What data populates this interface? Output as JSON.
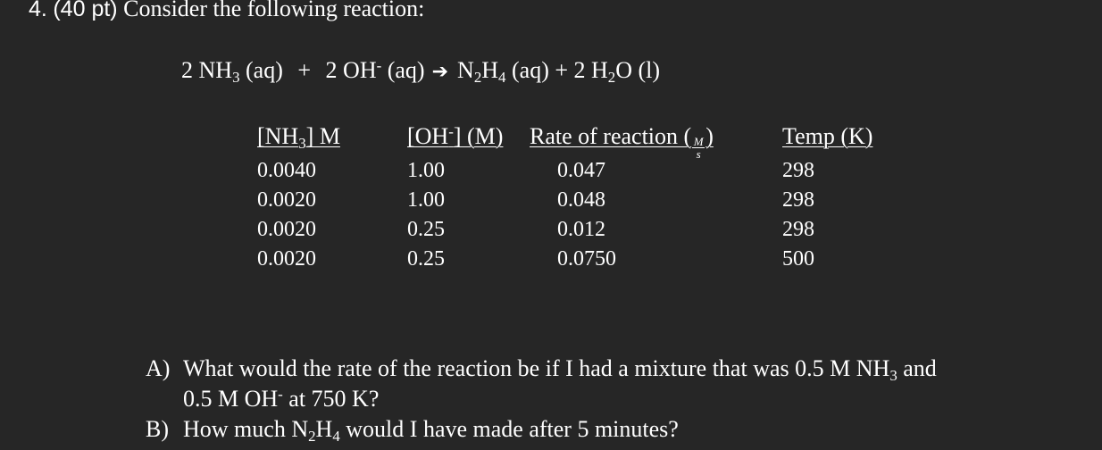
{
  "question": {
    "number": "4.",
    "points": "(40 pt)",
    "prompt": "Consider the following reaction:"
  },
  "equation": {
    "reactant1_coef": "2 NH",
    "reactant1_sub": "3",
    "reactant1_state": " (aq)",
    "plus": " + ",
    "reactant2": "2 OH",
    "reactant2_sup": "-",
    "reactant2_state": " (aq)",
    "arrow": "➔",
    "product1_a": "N",
    "product1_sub1": "2",
    "product1_b": "H",
    "product1_sub2": "4",
    "product1_state": " (aq) + 2 H",
    "product2_sub": "2",
    "product2_rest": "O (l)"
  },
  "table": {
    "headers": {
      "nh3_a": "[NH",
      "nh3_sub": "3",
      "nh3_b": "] M",
      "oh_a": "[OH",
      "oh_sup": "-",
      "oh_b": "] (M)",
      "rate_a": "Rate of reaction (",
      "rate_num": "M",
      "rate_den": "s",
      "rate_b": ")",
      "temp": "Temp (K)"
    },
    "rows": [
      {
        "nh3": "0.0040",
        "oh": "1.00",
        "rate": "0.047",
        "temp": "298"
      },
      {
        "nh3": "0.0020",
        "oh": "1.00",
        "rate": "0.048",
        "temp": "298"
      },
      {
        "nh3": "0.0020",
        "oh": "0.25",
        "rate": "0.012",
        "temp": "298"
      },
      {
        "nh3": "0.0020",
        "oh": "0.25",
        "rate": "0.0750",
        "temp": "500"
      }
    ]
  },
  "parts": {
    "a_label": "A)",
    "a_line1_a": "What would the rate of the reaction be if I had a mixture that was 0.5 M NH",
    "a_line1_sub": "3",
    "a_line1_b": " and",
    "a_line2_a": "0.5 M OH",
    "a_line2_sup": "-",
    "a_line2_b": " at 750 K?",
    "b_label": "B)",
    "b_a": "How much N",
    "b_sub1": "2",
    "b_b": "H",
    "b_sub2": "4",
    "b_c": " would I have made after 5 minutes?"
  }
}
